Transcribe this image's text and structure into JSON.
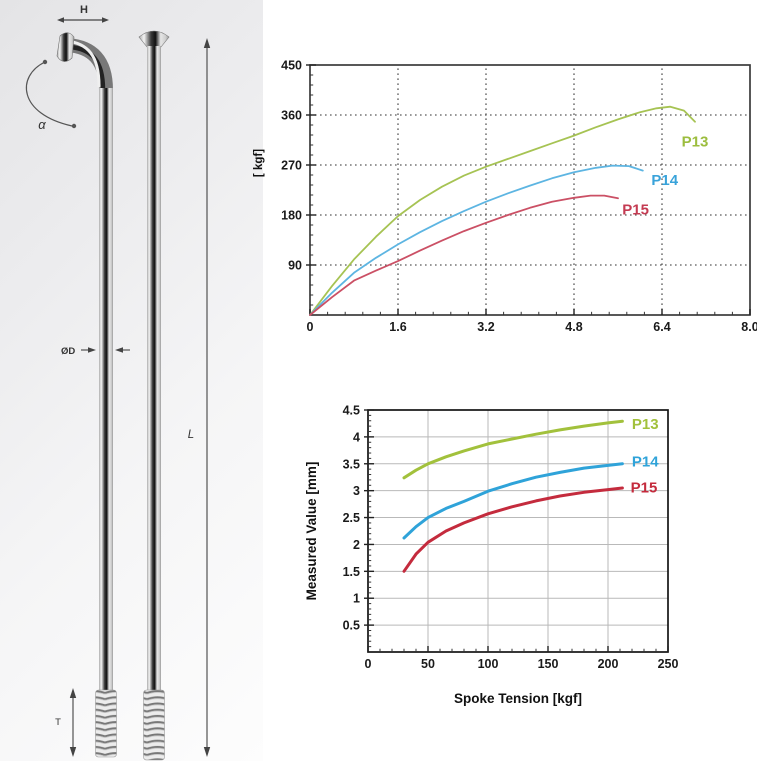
{
  "figure": {
    "left_diagram": {
      "labels": {
        "height": "H",
        "angle": "α",
        "diameter": "ØD",
        "length": "L",
        "thread": "T"
      }
    }
  },
  "chart_data": [
    {
      "type": "line",
      "title": "",
      "xlabel": "",
      "ylabel": "[ kgf]",
      "xlim": [
        0,
        8.0
      ],
      "ylim": [
        0,
        450
      ],
      "x_ticks": [
        0,
        1.6,
        3.2,
        4.8,
        6.4,
        8.0
      ],
      "x_tick_labels": [
        "0",
        "1.6",
        "3.2",
        "4.8",
        "6.4",
        "8.0"
      ],
      "y_ticks": [
        90,
        180,
        270,
        360,
        450
      ],
      "y_tick_labels": [
        "90",
        "180",
        "270",
        "360",
        "450"
      ],
      "x_minor_step": 0.32,
      "y_minor_step": 18,
      "grid": "dotted",
      "legend_position": "inline-right",
      "series": [
        {
          "name": "P13",
          "color": "#a6c353",
          "label_color": "#9cbd3e",
          "label_pos": [
            7.0,
            312
          ],
          "points": [
            [
              0,
              0
            ],
            [
              0.4,
              52
            ],
            [
              0.8,
              100
            ],
            [
              1.2,
              141
            ],
            [
              1.6,
              178
            ],
            [
              2.0,
              207
            ],
            [
              2.4,
              231
            ],
            [
              2.8,
              251
            ],
            [
              3.2,
              267
            ],
            [
              3.6,
              281
            ],
            [
              4.0,
              295
            ],
            [
              4.4,
              309
            ],
            [
              4.8,
              323
            ],
            [
              5.2,
              338
            ],
            [
              5.6,
              352
            ],
            [
              6.0,
              365
            ],
            [
              6.3,
              372
            ],
            [
              6.55,
              375
            ],
            [
              6.8,
              368
            ],
            [
              7.0,
              348
            ]
          ]
        },
        {
          "name": "P14",
          "color": "#5db5e2",
          "label_color": "#39a3da",
          "label_pos": [
            6.45,
            243
          ],
          "points": [
            [
              0,
              0
            ],
            [
              0.4,
              40
            ],
            [
              0.8,
              76
            ],
            [
              1.2,
              103
            ],
            [
              1.6,
              127
            ],
            [
              2.0,
              149
            ],
            [
              2.4,
              169
            ],
            [
              2.8,
              187
            ],
            [
              3.2,
              204
            ],
            [
              3.6,
              219
            ],
            [
              4.0,
              233
            ],
            [
              4.4,
              246
            ],
            [
              4.8,
              257
            ],
            [
              5.2,
              265
            ],
            [
              5.5,
              269
            ],
            [
              5.8,
              268
            ],
            [
              6.05,
              260
            ]
          ]
        },
        {
          "name": "P15",
          "color": "#cb5065",
          "label_color": "#c43b52",
          "label_pos": [
            5.92,
            190
          ],
          "points": [
            [
              0,
              0
            ],
            [
              0.4,
              32
            ],
            [
              0.8,
              62
            ],
            [
              1.2,
              80
            ],
            [
              1.6,
              97
            ],
            [
              2.0,
              116
            ],
            [
              2.4,
              134
            ],
            [
              2.8,
              151
            ],
            [
              3.2,
              166
            ],
            [
              3.6,
              180
            ],
            [
              4.0,
              193
            ],
            [
              4.4,
              204
            ],
            [
              4.8,
              211
            ],
            [
              5.1,
              215
            ],
            [
              5.35,
              215
            ],
            [
              5.6,
              210
            ]
          ]
        }
      ]
    },
    {
      "type": "line",
      "title": "",
      "xlabel": "Spoke Tension [kgf]",
      "ylabel": "Measured Value [mm]",
      "xlim": [
        0,
        250
      ],
      "ylim": [
        0,
        4.5
      ],
      "x_ticks": [
        0,
        50,
        100,
        150,
        200,
        250
      ],
      "x_tick_labels": [
        "0",
        "50",
        "100",
        "150",
        "200",
        "250"
      ],
      "y_ticks": [
        0.5,
        1,
        1.5,
        2,
        2.5,
        3,
        3.5,
        4,
        4.5
      ],
      "y_tick_labels": [
        "0.5",
        "1",
        "1.5",
        "2",
        "2.5",
        "3",
        "3.5",
        "4",
        "4.5"
      ],
      "x_minor_step": 10,
      "y_minor_step": 0.1,
      "grid": "solid",
      "legend_position": "inline-right",
      "series": [
        {
          "name": "P13",
          "color": "#a2c13c",
          "label_color": "#a2c13c",
          "label_pos": [
            231,
            4.24
          ],
          "points": [
            [
              30,
              3.24
            ],
            [
              40,
              3.38
            ],
            [
              50,
              3.5
            ],
            [
              65,
              3.63
            ],
            [
              80,
              3.74
            ],
            [
              100,
              3.87
            ],
            [
              120,
              3.96
            ],
            [
              140,
              4.05
            ],
            [
              160,
              4.13
            ],
            [
              180,
              4.2
            ],
            [
              200,
              4.26
            ],
            [
              212,
              4.29
            ]
          ]
        },
        {
          "name": "P14",
          "color": "#2fa3d9",
          "label_color": "#2fa3d9",
          "label_pos": [
            231,
            3.54
          ],
          "points": [
            [
              30,
              2.12
            ],
            [
              40,
              2.33
            ],
            [
              50,
              2.5
            ],
            [
              65,
              2.67
            ],
            [
              80,
              2.8
            ],
            [
              100,
              2.99
            ],
            [
              120,
              3.13
            ],
            [
              140,
              3.25
            ],
            [
              160,
              3.34
            ],
            [
              180,
              3.42
            ],
            [
              200,
              3.47
            ],
            [
              212,
              3.5
            ]
          ]
        },
        {
          "name": "P15",
          "color": "#c42b3d",
          "label_color": "#c42b3d",
          "label_pos": [
            230,
            3.06
          ],
          "points": [
            [
              30,
              1.5
            ],
            [
              40,
              1.82
            ],
            [
              50,
              2.04
            ],
            [
              65,
              2.25
            ],
            [
              80,
              2.4
            ],
            [
              100,
              2.57
            ],
            [
              120,
              2.7
            ],
            [
              140,
              2.81
            ],
            [
              160,
              2.9
            ],
            [
              180,
              2.97
            ],
            [
              200,
              3.02
            ],
            [
              212,
              3.05
            ]
          ]
        }
      ]
    }
  ]
}
